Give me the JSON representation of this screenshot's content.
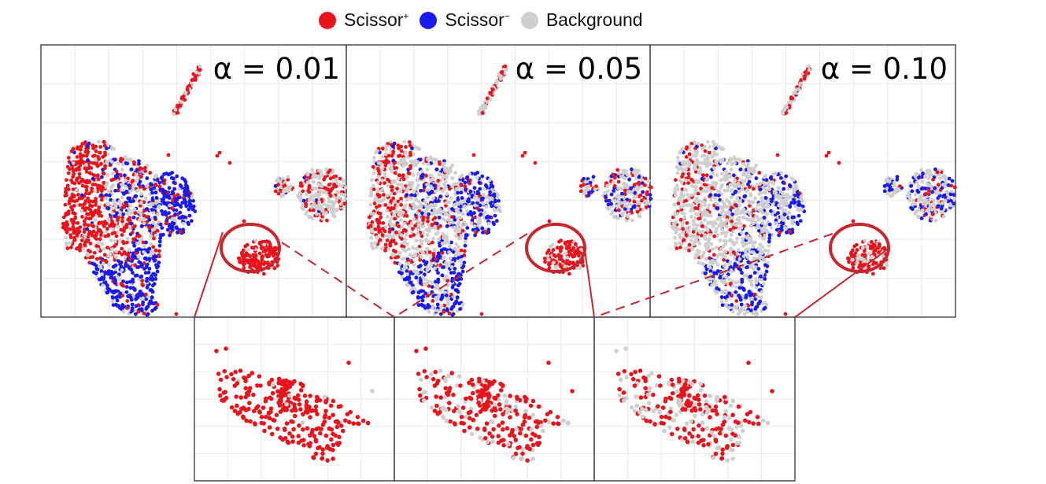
{
  "legend": {
    "items": [
      {
        "base": "Scissor",
        "sup": "+",
        "color": "#e8141c"
      },
      {
        "base": "Scissor",
        "sup": "−",
        "color": "#1a1aeb"
      },
      {
        "base": "Background",
        "sup": "",
        "color": "#cfcfcf"
      }
    ]
  },
  "colors": {
    "scissor_pos": "#e8141c",
    "scissor_neg": "#1a1aeb",
    "background": "#cfcfcf",
    "highlight": "#c9252c",
    "grid": "#e9e9e9"
  },
  "chart_data": [
    {
      "type": "scatter",
      "panel": "top-1",
      "title": "α = 0.01",
      "series": [
        "Scissor+",
        "Scissor−",
        "Background"
      ],
      "highlight": "circled cluster",
      "composition": {
        "Scissor+": 0.48,
        "Scissor−": 0.32,
        "Background": 0.2
      }
    },
    {
      "type": "scatter",
      "panel": "top-2",
      "title": "α = 0.05",
      "series": [
        "Scissor+",
        "Scissor−",
        "Background"
      ],
      "highlight": "circled cluster",
      "composition": {
        "Scissor+": 0.3,
        "Scissor−": 0.22,
        "Background": 0.48
      }
    },
    {
      "type": "scatter",
      "panel": "top-3",
      "title": "α = 0.10",
      "series": [
        "Scissor+",
        "Scissor−",
        "Background"
      ],
      "highlight": "circled cluster",
      "composition": {
        "Scissor+": 0.2,
        "Scissor−": 0.18,
        "Background": 0.62
      }
    },
    {
      "type": "scatter",
      "panel": "zoom-1",
      "subset": "circled cluster, α = 0.01",
      "composition": {
        "Scissor+": 0.97,
        "Background": 0.03
      }
    },
    {
      "type": "scatter",
      "panel": "zoom-2",
      "subset": "circled cluster, α = 0.05",
      "composition": {
        "Scissor+": 0.72,
        "Background": 0.28
      }
    },
    {
      "type": "scatter",
      "panel": "zoom-3",
      "subset": "circled cluster, α = 0.10",
      "composition": {
        "Scissor+": 0.55,
        "Background": 0.45
      }
    }
  ]
}
